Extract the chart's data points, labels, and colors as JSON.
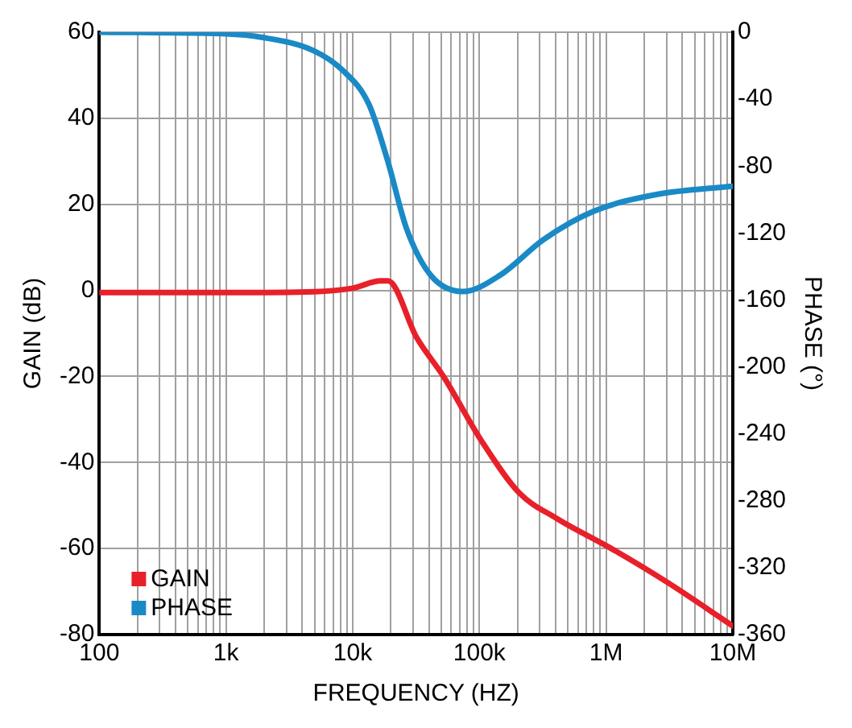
{
  "chart_data": {
    "type": "line",
    "xlabel": "FREQUENCY (HZ)",
    "ylabel": "GAIN (dB)",
    "y2label": "PHASE (°)",
    "log": "x",
    "grid": true,
    "legend": "bottom left",
    "marker": "none",
    "line_style": "solid",
    "xlim": [
      100,
      10000000
    ],
    "xticks": [
      {
        "value": 100,
        "label": "100"
      },
      {
        "value": 200,
        "label": null
      },
      {
        "value": 300,
        "label": null
      },
      {
        "value": 400,
        "label": null
      },
      {
        "value": 500,
        "label": null
      },
      {
        "value": 600,
        "label": null
      },
      {
        "value": 700,
        "label": null
      },
      {
        "value": 800,
        "label": null
      },
      {
        "value": 900,
        "label": null
      },
      {
        "value": 1000,
        "label": "1k"
      },
      {
        "value": 2000,
        "label": null
      },
      {
        "value": 3000,
        "label": null
      },
      {
        "value": 4000,
        "label": null
      },
      {
        "value": 5000,
        "label": null
      },
      {
        "value": 6000,
        "label": null
      },
      {
        "value": 7000,
        "label": null
      },
      {
        "value": 8000,
        "label": null
      },
      {
        "value": 9000,
        "label": null
      },
      {
        "value": 10000,
        "label": "10k"
      },
      {
        "value": 20000,
        "label": null
      },
      {
        "value": 30000,
        "label": null
      },
      {
        "value": 40000,
        "label": null
      },
      {
        "value": 50000,
        "label": null
      },
      {
        "value": 60000,
        "label": null
      },
      {
        "value": 70000,
        "label": null
      },
      {
        "value": 80000,
        "label": null
      },
      {
        "value": 90000,
        "label": null
      },
      {
        "value": 100000,
        "label": "100k"
      },
      {
        "value": 200000,
        "label": null
      },
      {
        "value": 300000,
        "label": null
      },
      {
        "value": 400000,
        "label": null
      },
      {
        "value": 500000,
        "label": null
      },
      {
        "value": 600000,
        "label": null
      },
      {
        "value": 700000,
        "label": null
      },
      {
        "value": 800000,
        "label": null
      },
      {
        "value": 900000,
        "label": null
      },
      {
        "value": 1000000,
        "label": "1M"
      },
      {
        "value": 2000000,
        "label": null
      },
      {
        "value": 3000000,
        "label": null
      },
      {
        "value": 4000000,
        "label": null
      },
      {
        "value": 5000000,
        "label": null
      },
      {
        "value": 6000000,
        "label": null
      },
      {
        "value": 7000000,
        "label": null
      },
      {
        "value": 8000000,
        "label": null
      },
      {
        "value": 9000000,
        "label": null
      },
      {
        "value": 10000000,
        "label": "10M"
      }
    ],
    "ylim": [
      -80,
      60
    ],
    "yticks": [
      -80,
      -60,
      -40,
      -20,
      0,
      20,
      40,
      60
    ],
    "y2lim": [
      -360,
      0
    ],
    "y2ticks": [
      -360,
      -320,
      -280,
      -240,
      -200,
      -160,
      -120,
      -80,
      -40,
      0
    ],
    "series": [
      {
        "name": "GAIN",
        "color": "#e8202a",
        "x": [
          100,
          1000,
          5000,
          10000,
          16600,
          19000,
          32000,
          52000,
          104000,
          205000,
          407000,
          1100000,
          3100000,
          10000000
        ],
        "values": [
          -0.5,
          -0.5,
          -0.3,
          0.5,
          2.2,
          2.2,
          -11,
          -20,
          -35,
          -47,
          -53,
          -60,
          -68,
          -78
        ]
      },
      {
        "name": "PHASE",
        "color": "#1a8ac6",
        "axis": "y2",
        "x": [
          100,
          1000,
          1900,
          4900,
          8400,
          13400,
          18900,
          26500,
          41000,
          74000,
          147000,
          320000,
          800000,
          2500000,
          10000000
        ],
        "values": [
          0,
          -1,
          -3,
          -11,
          -23,
          -43,
          -77,
          -117,
          -145,
          -155,
          -145,
          -124,
          -107,
          -97,
          -92
        ]
      }
    ]
  }
}
